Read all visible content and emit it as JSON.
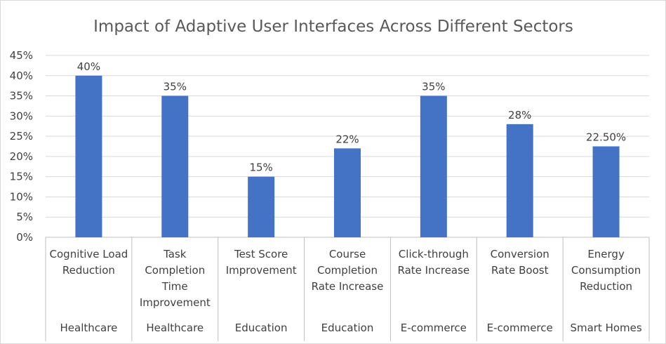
{
  "chart_data": {
    "type": "bar",
    "title": "Impact of Adaptive User Interfaces Across Different Sectors",
    "categories": [
      "Cognitive Load Reduction",
      "Task Completion Time Improvement",
      "Test Score Improvement",
      "Course Completion Rate Increase",
      "Click-through Rate Increase",
      "Conversion Rate Boost",
      "Energy Consumption Reduction"
    ],
    "category_lines": [
      [
        "Cognitive Load",
        "Reduction"
      ],
      [
        "Task",
        "Completion",
        "Time",
        "Improvement"
      ],
      [
        "Test Score",
        "Improvement"
      ],
      [
        "Course",
        "Completion",
        "Rate Increase"
      ],
      [
        "Click-through",
        "Rate Increase"
      ],
      [
        "Conversion",
        "Rate Boost"
      ],
      [
        "Energy",
        "Consumption",
        "Reduction"
      ]
    ],
    "groups": [
      "Healthcare",
      "Healthcare",
      "Education",
      "Education",
      "E-commerce",
      "E-commerce",
      "Smart Homes"
    ],
    "values": [
      0.4,
      0.35,
      0.15,
      0.22,
      0.35,
      0.28,
      0.225
    ],
    "data_labels": [
      "40%",
      "35%",
      "15%",
      "22%",
      "35%",
      "28%",
      "22.50%"
    ],
    "ylim": [
      0,
      0.45
    ],
    "yticks": [
      0,
      0.05,
      0.1,
      0.15,
      0.2,
      0.25,
      0.3,
      0.35,
      0.4,
      0.45
    ],
    "ytick_labels": [
      "0%",
      "5%",
      "10%",
      "15%",
      "20%",
      "25%",
      "30%",
      "35%",
      "40%",
      "45%"
    ],
    "xlabel": "",
    "ylabel": "",
    "grid": true,
    "legend": "none",
    "bar_color": "#4472C4"
  }
}
